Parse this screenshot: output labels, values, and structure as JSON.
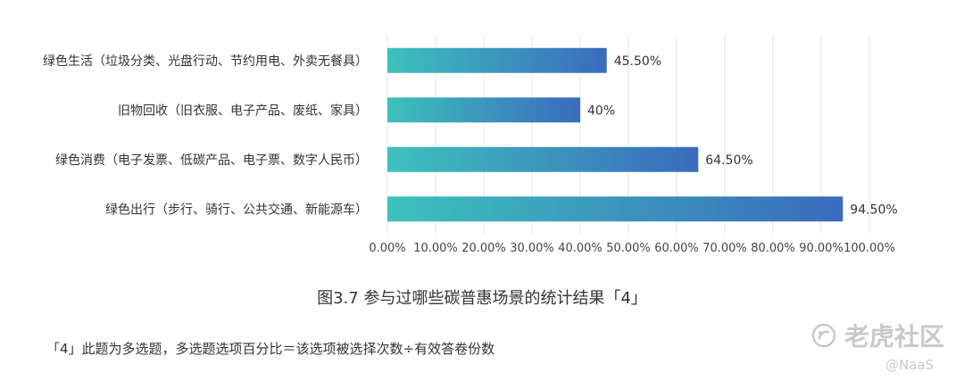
{
  "chart_data": {
    "type": "bar",
    "orientation": "horizontal",
    "categories": [
      "绿色生活（垃圾分类、光盘行动、节约用电、外卖无餐具）",
      "旧物回收（旧衣服、电子产品、废纸、家具）",
      "绿色消费（电子发票、低碳产品、电子票、数字人民币）",
      "绿色出行（步行、骑行、公共交通、新能源车）"
    ],
    "values": [
      45.5,
      40,
      64.5,
      94.5
    ],
    "data_labels": [
      "45.50%",
      "40%",
      "64.50%",
      "94.50%"
    ],
    "x_ticks": [
      "0.00%",
      "10.00%",
      "20.00%",
      "30.00%",
      "40.00%",
      "50.00%",
      "60.00%",
      "70.00%",
      "80.00%",
      "90.00%",
      "100.00%"
    ],
    "xlim": [
      0,
      100
    ],
    "grid": true,
    "bar_gradient": [
      "#3dc1bd",
      "#3a6bbd"
    ],
    "title": "图3.7 参与过哪些碳普惠场景的统计结果「4」"
  },
  "footnote": "「4」此题为多选题，多选题选项百分比＝该选项被选择次数÷有效答卷份数",
  "watermark": {
    "brand": "老虎社区",
    "user": "@NaaS"
  }
}
